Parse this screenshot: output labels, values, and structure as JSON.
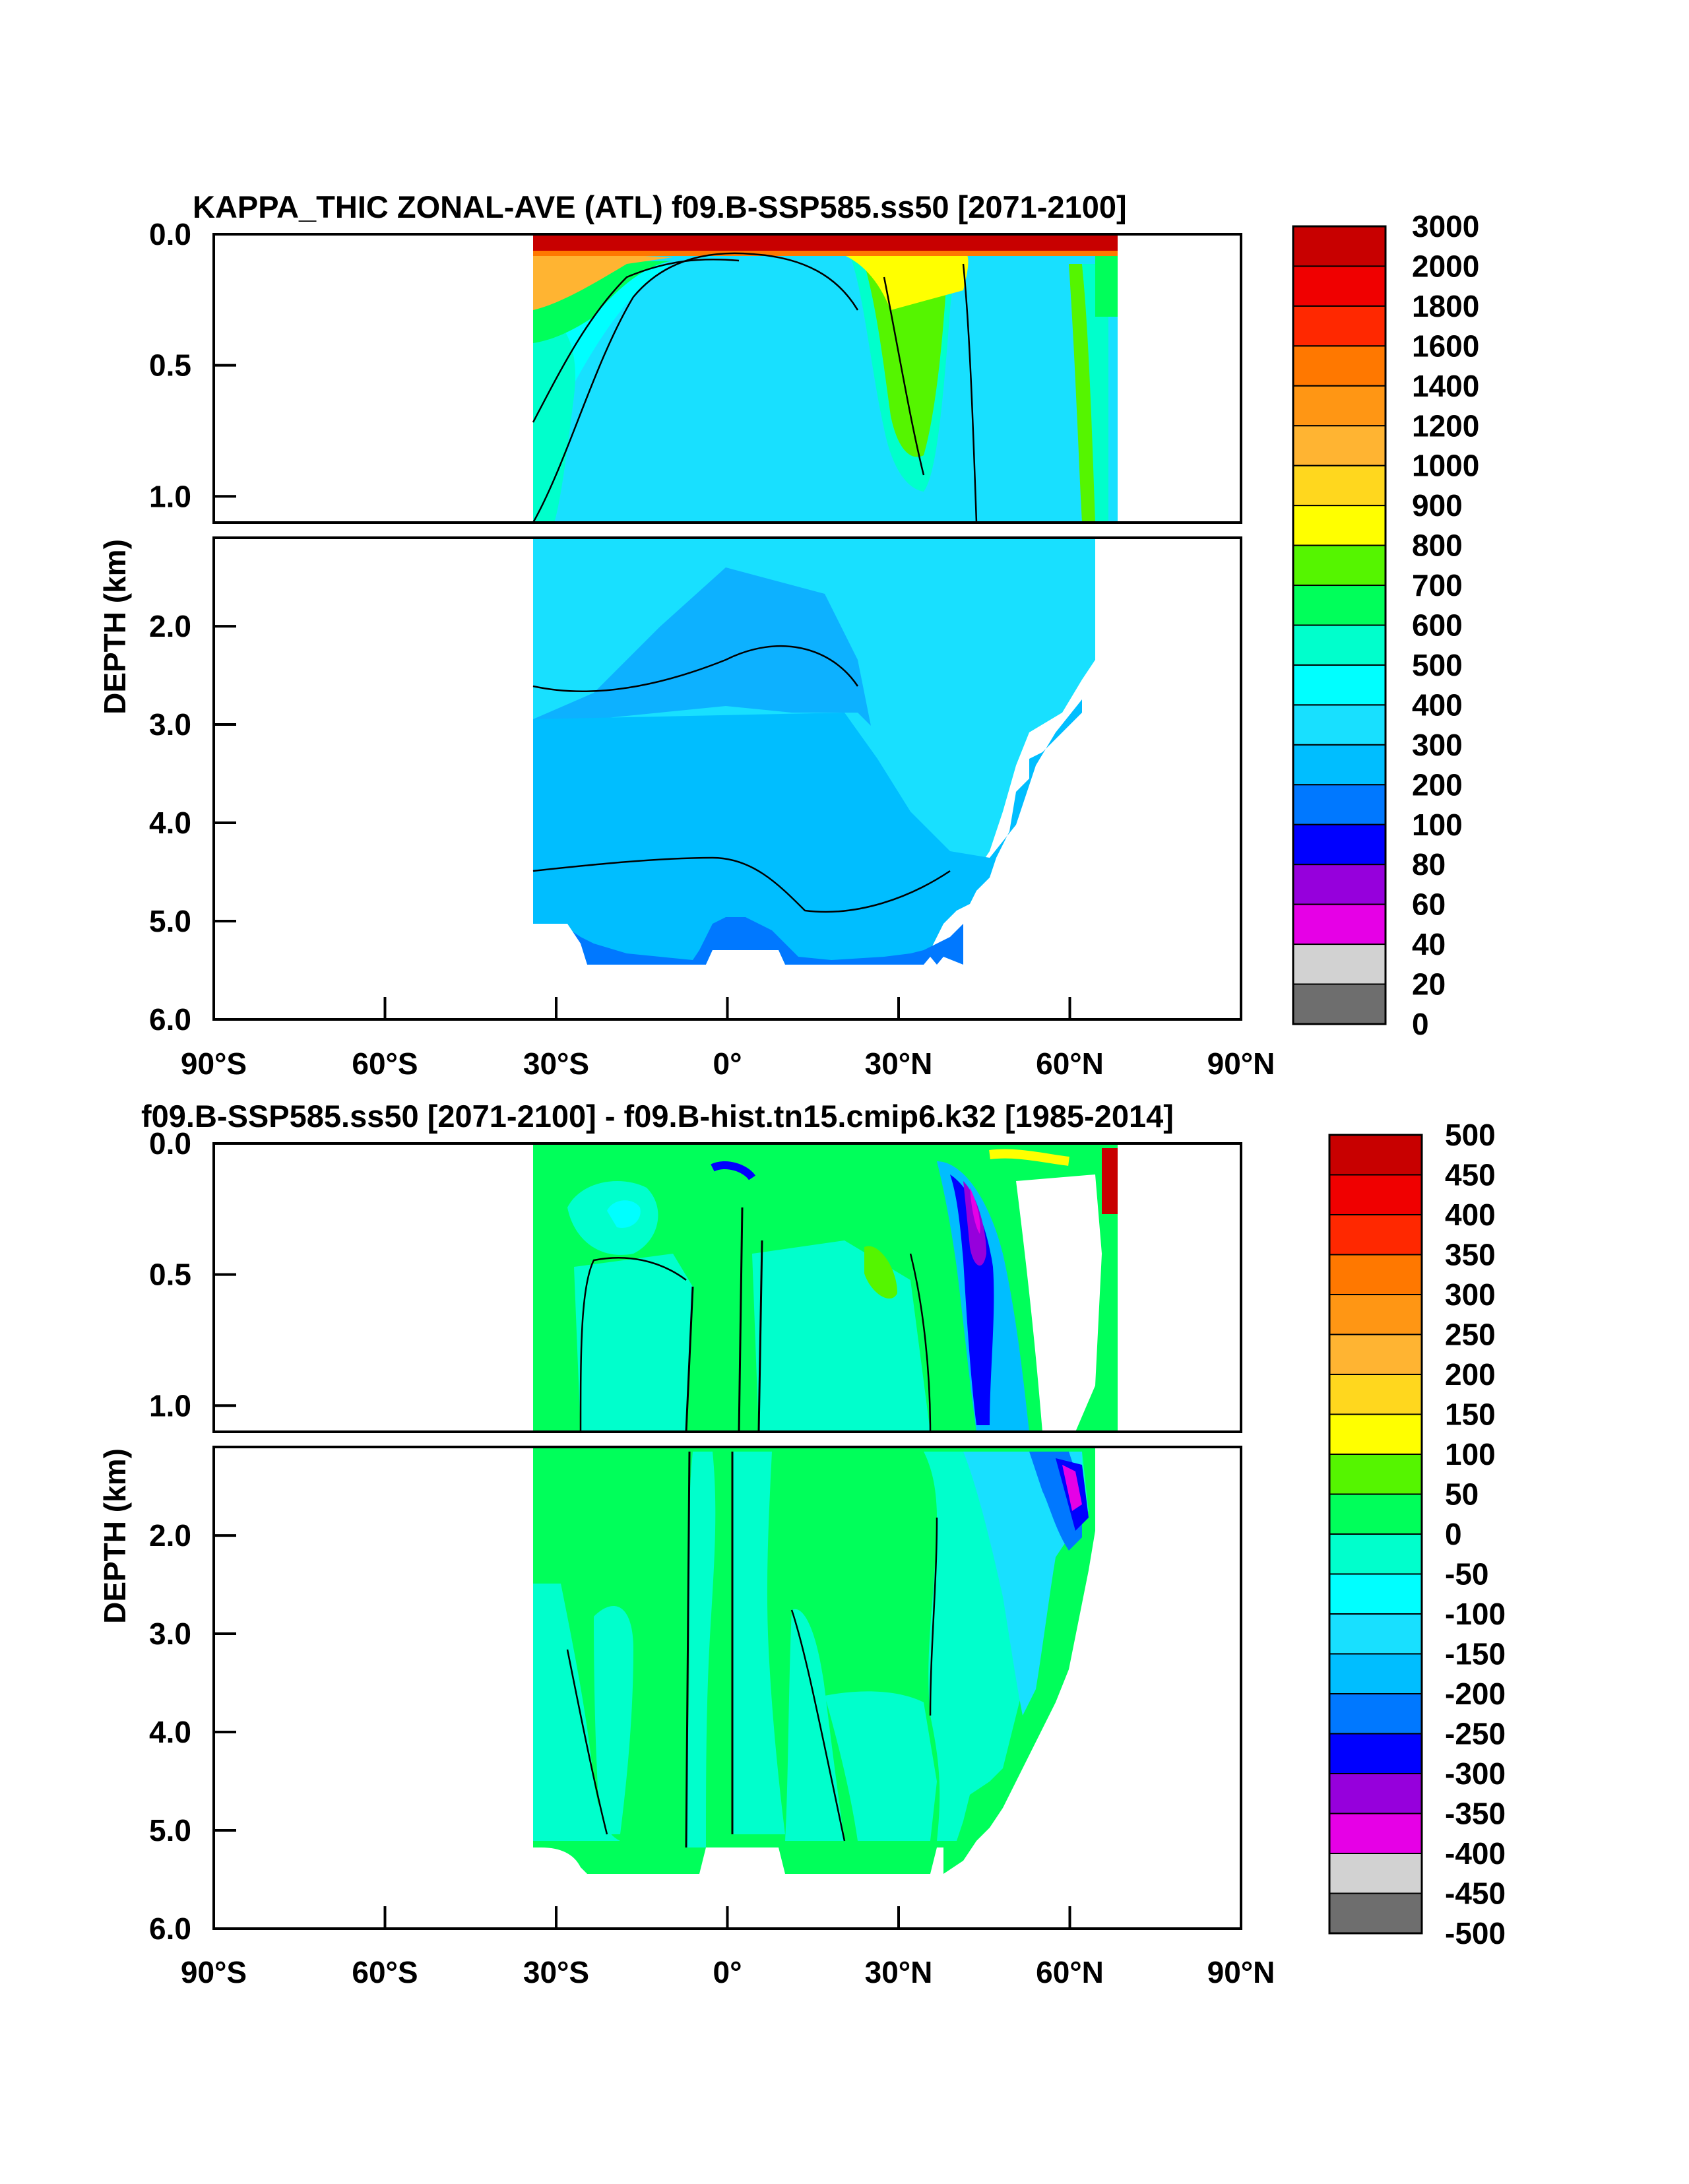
{
  "colors": {
    "abs_palette": [
      "#6e6e6e",
      "#d2d2d2",
      "#e600e6",
      "#9600dc",
      "#0000ff",
      "#0078ff",
      "#00beff",
      "#18e0ff",
      "#00ffff",
      "#00ffcc",
      "#00ff5a",
      "#55f500",
      "#ffff00",
      "#ffd71e",
      "#ffb432",
      "#ff9614",
      "#ff7800",
      "#ff2800",
      "#f00000",
      "#c80000"
    ],
    "diff_palette": [
      "#6e6e6e",
      "#d2d2d2",
      "#e600e6",
      "#9600dc",
      "#0000ff",
      "#0078ff",
      "#00beff",
      "#18e0ff",
      "#00ffff",
      "#00ffcc",
      "#00ff5a",
      "#55f500",
      "#ffff00",
      "#ffd71e",
      "#ffb432",
      "#ff9614",
      "#ff7800",
      "#ff2800",
      "#f00000",
      "#c80000"
    ]
  },
  "chart_data": [
    {
      "type": "heatmap",
      "title": "KAPPA_THIC ZONAL-AVE (ATL) f09.B-SSP585.ss50 [2071-2100]",
      "ylabel": "DEPTH (km)",
      "xlim": [
        -90,
        90
      ],
      "upper_ylim": [
        0.0,
        1.1
      ],
      "lower_ylim": [
        1.1,
        6.0
      ],
      "x_ticks": [
        "90°S",
        "60°S",
        "30°S",
        "0°",
        "30°N",
        "60°N",
        "90°N"
      ],
      "upper_y_ticks": [
        "0.0",
        "0.5",
        "1.0"
      ],
      "lower_y_ticks": [
        "2.0",
        "3.0",
        "4.0",
        "5.0",
        "6.0"
      ],
      "colorbar_labels": [
        "3000",
        "2000",
        "1800",
        "1600",
        "1400",
        "1200",
        "1000",
        "900",
        "800",
        "700",
        "600",
        "500",
        "400",
        "300",
        "200",
        "100",
        "80",
        "60",
        "40",
        "20",
        "0"
      ],
      "data_extent_lat": [
        -34,
        68
      ],
      "bottom_depth_km": 5.4,
      "regions": [
        {
          "lat": [
            -34,
            68
          ],
          "depth": [
            0.0,
            0.05
          ],
          "value": 3000
        },
        {
          "lat": [
            -34,
            -5
          ],
          "depth": [
            0.05,
            0.2
          ],
          "value": 1200
        },
        {
          "lat": [
            -34,
            -5
          ],
          "depth": [
            0.2,
            0.35
          ],
          "value": 700
        },
        {
          "lat": [
            -34,
            68
          ],
          "depth": [
            0.35,
            1.1
          ],
          "value": 450
        },
        {
          "lat": [
            -10,
            40
          ],
          "depth": [
            0.1,
            1.5
          ],
          "value": 350
        },
        {
          "lat": [
            25,
            38
          ],
          "depth": [
            0.1,
            0.8
          ],
          "value": 650
        },
        {
          "lat": [
            60,
            65
          ],
          "depth": [
            0.1,
            1.1
          ],
          "value": 650
        },
        {
          "lat": [
            -34,
            68
          ],
          "depth": [
            1.1,
            2.8
          ],
          "value": 350
        },
        {
          "lat": [
            -34,
            55
          ],
          "depth": [
            2.8,
            5.4
          ],
          "value": 250
        },
        {
          "lat": [
            -34,
            50
          ],
          "depth": [
            4.8,
            5.4
          ],
          "value": 150
        }
      ]
    },
    {
      "type": "heatmap",
      "title": "f09.B-SSP585.ss50 [2071-2100] - f09.B-hist.tn15.cmip6.k32 [1985-2014]",
      "ylabel": "DEPTH (km)",
      "xlim": [
        -90,
        90
      ],
      "upper_ylim": [
        0.0,
        1.1
      ],
      "lower_ylim": [
        1.1,
        6.0
      ],
      "x_ticks": [
        "90°S",
        "60°S",
        "30°S",
        "0°",
        "30°N",
        "60°N",
        "90°N"
      ],
      "upper_y_ticks": [
        "0.0",
        "0.5",
        "1.0"
      ],
      "lower_y_ticks": [
        "2.0",
        "3.0",
        "4.0",
        "5.0",
        "6.0"
      ],
      "colorbar_labels": [
        "500",
        "450",
        "400",
        "350",
        "300",
        "250",
        "200",
        "150",
        "100",
        "50",
        "0",
        "-50",
        "-100",
        "-150",
        "-200",
        "-250",
        "-300",
        "-350",
        "-400",
        "-450",
        "-500"
      ],
      "data_extent_lat": [
        -34,
        68
      ],
      "bottom_depth_km": 5.4,
      "regions": [
        {
          "lat": [
            -34,
            68
          ],
          "depth": [
            0.0,
            5.4
          ],
          "value": 25
        },
        {
          "lat": [
            -20,
            5
          ],
          "depth": [
            0.4,
            5.4
          ],
          "value": -25
        },
        {
          "lat": [
            15,
            40
          ],
          "depth": [
            3.0,
            5.4
          ],
          "value": -25
        },
        {
          "lat": [
            -25,
            -10
          ],
          "depth": [
            0.15,
            0.45
          ],
          "value": -75
        },
        {
          "lat": [
            40,
            52
          ],
          "depth": [
            0.1,
            1.1
          ],
          "value": -275
        },
        {
          "lat": [
            55,
            64
          ],
          "depth": [
            1.1,
            2.2
          ],
          "value": -275
        },
        {
          "lat": [
            52,
            65
          ],
          "depth": [
            0.1,
            0.9
          ],
          "value": null
        }
      ]
    }
  ]
}
